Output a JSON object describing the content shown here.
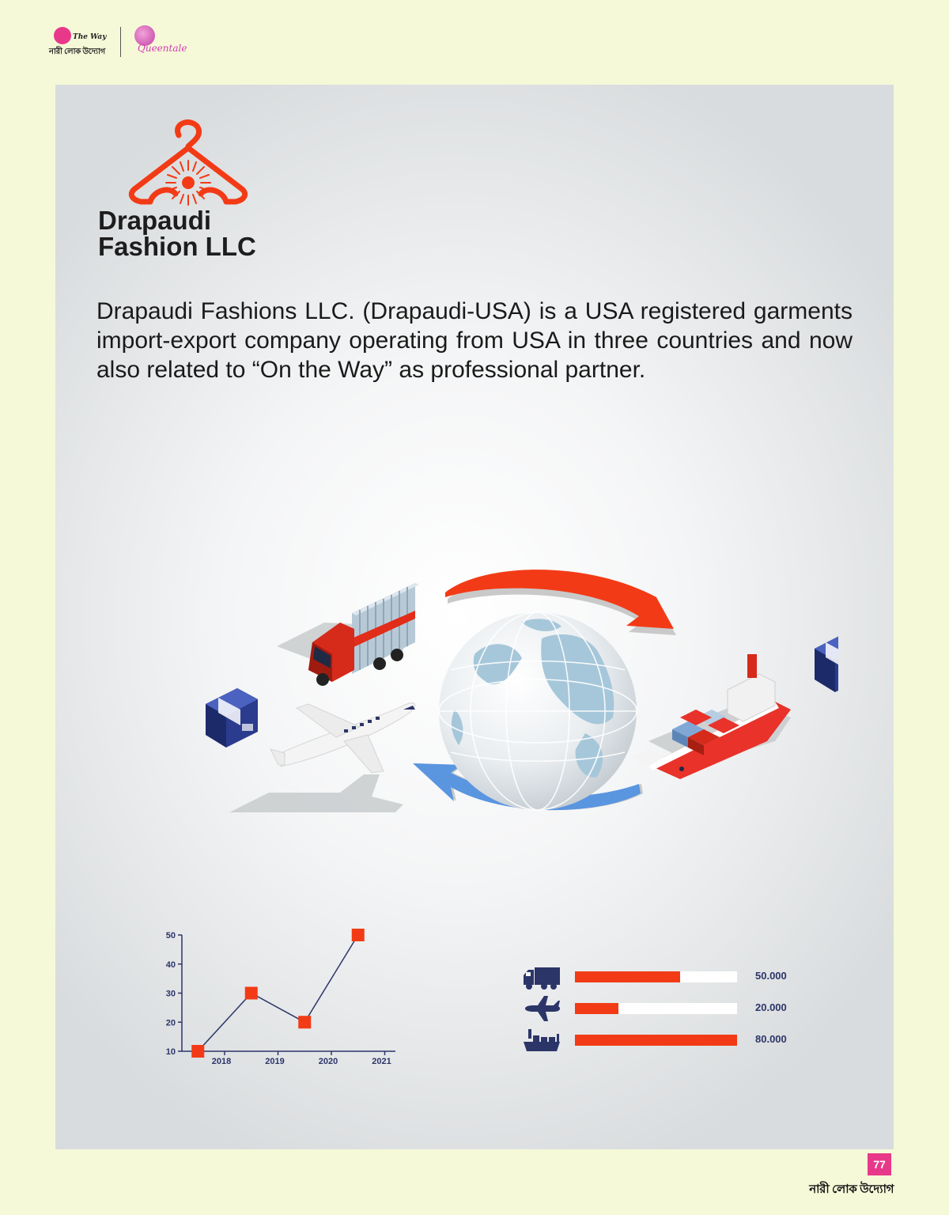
{
  "header": {
    "left_logo": {
      "brand": "The Way",
      "subtitle": "নারী লোক উদ্যোগ"
    },
    "right_logo": {
      "brand": "Queentale"
    }
  },
  "company": {
    "name_line1": "Drapaudi",
    "name_line2": "Fashion LLC",
    "logo_color": "#f23b16"
  },
  "intro_text": "Drapaudi Fashions LLC. (Drapaudi-USA) is a USA registered garments import-export company operating from USA in three countries and now also related to “On the Way” as professional partner.",
  "illustration": {
    "items": [
      "truck",
      "airplane",
      "globe",
      "cargo-ship",
      "box",
      "box",
      "red-arrow",
      "blue-arrow"
    ]
  },
  "chart_data": [
    {
      "type": "line",
      "x_ticks": [
        "2018",
        "2019",
        "2020",
        "2021"
      ],
      "y_ticks": [
        "10",
        "20",
        "30",
        "40",
        "50"
      ],
      "ylim": [
        10,
        50
      ],
      "points": [
        {
          "x": 2017.5,
          "y": 10
        },
        {
          "x": 2018.5,
          "y": 30
        },
        {
          "x": 2019.5,
          "y": 20
        },
        {
          "x": 2020.5,
          "y": 50
        }
      ],
      "color": "#f23b16",
      "line_color": "#2c3568"
    },
    {
      "type": "bar",
      "orientation": "horizontal",
      "categories": [
        "truck-icon",
        "airplane-icon",
        "ship-icon"
      ],
      "values": [
        50,
        20,
        80
      ],
      "value_labels": [
        "50.000",
        "20.000",
        "80.000"
      ],
      "fill_fractions": [
        0.65,
        0.27,
        1.0
      ],
      "fill_color": "#f23b16",
      "track_color": "#ffffff"
    }
  ],
  "footer": {
    "page_number": "77",
    "brand": "নারী লোক উদ্যোগ"
  }
}
